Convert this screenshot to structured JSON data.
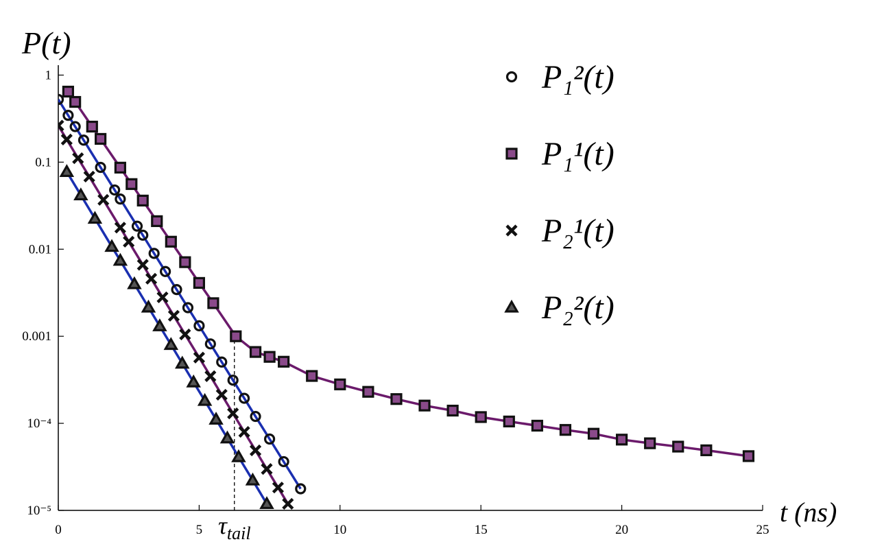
{
  "chart_data": {
    "type": "scatter",
    "yscale": "log",
    "grid": false,
    "y_label": "P(t)",
    "x_label": "t (ns)",
    "xlim": [
      0,
      25
    ],
    "xticks": [
      0,
      5,
      10,
      15,
      20,
      25
    ],
    "ylim": [
      1e-05,
      1.3
    ],
    "yticks": [
      1,
      0.1,
      0.01,
      0.001,
      {
        "value": 0.0001,
        "label": "10⁻⁴"
      },
      {
        "value": 1e-05,
        "label": "10⁻⁵"
      }
    ],
    "legend": "top-right",
    "annotation": {
      "text": "τ",
      "subscript": "tail",
      "x": 6.25
    },
    "series": [
      {
        "name": "P₁²(t)",
        "marker": "circle",
        "color": "#1a2fb0",
        "x": [
          0,
          0.35,
          0.6,
          0.9,
          1.5,
          2.0,
          2.2,
          2.8,
          3.0,
          3.4,
          3.8,
          4.2,
          4.6,
          5.0,
          5.4,
          5.8,
          6.2,
          6.6,
          7.0,
          7.5,
          8.0,
          8.6
        ],
        "values": [
          0.525,
          0.345,
          0.256,
          0.179,
          0.0871,
          0.0479,
          0.0377,
          0.0184,
          0.0145,
          0.00895,
          0.00555,
          0.00344,
          0.00213,
          0.00132,
          0.000817,
          0.000506,
          0.000313,
          0.000194,
          0.00012,
          6.6e-05,
          3.63e-05,
          1.77e-05
        ]
      },
      {
        "name": "P₁¹(t)",
        "marker": "square",
        "color": "#6b1a6b",
        "x": [
          0.35,
          0.6,
          1.2,
          1.5,
          2.2,
          2.6,
          3.0,
          3.5,
          4.0,
          4.5,
          5.0,
          5.5,
          6.3,
          7.0,
          7.5,
          8.0,
          9.0,
          10.0,
          11.0,
          12.0,
          13.0,
          14.0,
          15.0,
          16.0,
          17.0,
          18.0,
          19.0,
          20.0,
          21.0,
          22.0,
          23.0,
          24.5
        ],
        "values": [
          0.646,
          0.492,
          0.256,
          0.185,
          0.0865,
          0.056,
          0.0362,
          0.021,
          0.0122,
          0.0071,
          0.0041,
          0.0024,
          0.001,
          0.00066,
          0.00058,
          0.00051,
          0.00035,
          0.00028,
          0.00023,
          0.00019,
          0.00016,
          0.00014,
          0.000118,
          0.000105,
          9.4e-05,
          8.4e-05,
          7.6e-05,
          6.5e-05,
          5.9e-05,
          5.4e-05,
          4.9e-05,
          4.2e-05
        ]
      },
      {
        "name": "P₂¹(t)",
        "marker": "cross",
        "color": "#6b1a6b",
        "x": [
          0,
          0.3,
          0.7,
          1.1,
          1.6,
          2.2,
          2.5,
          3.0,
          3.3,
          3.7,
          4.1,
          4.5,
          5.0,
          5.4,
          5.8,
          6.2,
          6.6,
          7.0,
          7.4,
          7.8,
          8.15
        ],
        "values": [
          0.263,
          0.182,
          0.111,
          0.0682,
          0.0369,
          0.0177,
          0.0122,
          0.00662,
          0.00458,
          0.0028,
          0.00172,
          0.00105,
          0.000569,
          0.000348,
          0.000213,
          0.00013,
          7.98e-05,
          4.89e-05,
          2.99e-05,
          1.83e-05,
          1.19e-05
        ]
      },
      {
        "name": "P₂²(t)",
        "marker": "triangle",
        "color": "#1a2fb0",
        "x": [
          0.3,
          0.8,
          1.3,
          1.9,
          2.2,
          2.7,
          3.2,
          3.6,
          4.0,
          4.4,
          4.8,
          5.2,
          5.6,
          6.0,
          6.4,
          6.9,
          7.4
        ],
        "values": [
          0.0776,
          0.0418,
          0.0225,
          0.0107,
          0.00741,
          0.00399,
          0.00215,
          0.00131,
          0.0008,
          0.000488,
          0.000297,
          0.000182,
          0.000111,
          6.75e-05,
          4.11e-05,
          2.22e-05,
          1.19e-05
        ]
      }
    ]
  }
}
